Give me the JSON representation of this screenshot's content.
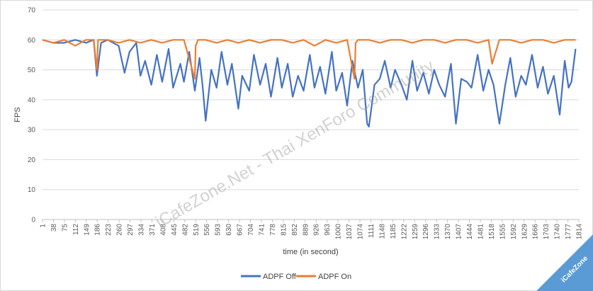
{
  "chart_data": {
    "type": "line",
    "xlabel": "time (in second)",
    "ylabel": "FPS",
    "ylim": [
      0,
      70
    ],
    "yticks": [
      0,
      10,
      20,
      30,
      40,
      50,
      60,
      70
    ],
    "xlim": [
      1,
      1825
    ],
    "xtick_labels": [
      "1",
      "38",
      "75",
      "112",
      "149",
      "186",
      "223",
      "260",
      "297",
      "334",
      "371",
      "408",
      "445",
      "482",
      "519",
      "556",
      "593",
      "630",
      "667",
      "704",
      "741",
      "778",
      "815",
      "852",
      "889",
      "926",
      "963",
      "1000",
      "1037",
      "1074",
      "1111",
      "1148",
      "1185",
      "1222",
      "1259",
      "1296",
      "1333",
      "1370",
      "1407",
      "1444",
      "1481",
      "1518",
      "1555",
      "1592",
      "1629",
      "1666",
      "1703",
      "1740",
      "1777",
      "1814"
    ],
    "grid": "horizontal",
    "legend_position": "bottom",
    "series": [
      {
        "name": "ADPF Off",
        "color": "#4472c4",
        "x": [
          1,
          38,
          75,
          112,
          149,
          175,
          186,
          200,
          223,
          260,
          280,
          297,
          320,
          334,
          350,
          371,
          390,
          408,
          430,
          445,
          470,
          482,
          500,
          519,
          535,
          545,
          556,
          575,
          593,
          610,
          630,
          645,
          667,
          680,
          704,
          720,
          741,
          760,
          778,
          800,
          815,
          835,
          852,
          870,
          889,
          910,
          926,
          945,
          963,
          985,
          1000,
          1020,
          1037,
          1055,
          1074,
          1090,
          1105,
          1111,
          1130,
          1148,
          1165,
          1185,
          1200,
          1222,
          1240,
          1259,
          1275,
          1296,
          1315,
          1333,
          1350,
          1370,
          1390,
          1407,
          1425,
          1444,
          1460,
          1481,
          1500,
          1518,
          1535,
          1555,
          1575,
          1592,
          1610,
          1629,
          1645,
          1666,
          1685,
          1703,
          1720,
          1740,
          1760,
          1777,
          1790,
          1800,
          1814
        ],
        "y": [
          60,
          59,
          59,
          60,
          59,
          60,
          48,
          59,
          60,
          58,
          49,
          56,
          59,
          48,
          53,
          45,
          55,
          46,
          57,
          44,
          52,
          46,
          56,
          43,
          54,
          45,
          33,
          50,
          44,
          56,
          45,
          52,
          37,
          48,
          43,
          55,
          45,
          52,
          41,
          54,
          44,
          52,
          41,
          48,
          43,
          55,
          44,
          51,
          42,
          56,
          43,
          49,
          38,
          53,
          44,
          50,
          32,
          31,
          45,
          47,
          53,
          44,
          50,
          45,
          40,
          53,
          43,
          49,
          42,
          50,
          45,
          41,
          52,
          32,
          47,
          46,
          44,
          55,
          43,
          50,
          45,
          32,
          45,
          54,
          41,
          48,
          45,
          55,
          44,
          51,
          42,
          48,
          35,
          53,
          44,
          46,
          57
        ]
      },
      {
        "name": "ADPF On",
        "color": "#ed7d31",
        "x": [
          1,
          38,
          75,
          112,
          149,
          175,
          186,
          190,
          223,
          260,
          297,
          334,
          371,
          408,
          445,
          482,
          519,
          522,
          530,
          556,
          593,
          630,
          667,
          704,
          741,
          778,
          815,
          852,
          889,
          926,
          963,
          1000,
          1037,
          1062,
          1066,
          1074,
          1111,
          1148,
          1185,
          1222,
          1259,
          1296,
          1333,
          1370,
          1407,
          1444,
          1481,
          1518,
          1530,
          1555,
          1592,
          1629,
          1666,
          1703,
          1740,
          1777,
          1800,
          1814
        ],
        "y": [
          60,
          59,
          60,
          58,
          60,
          60,
          50,
          60,
          60,
          59,
          60,
          59,
          60,
          59,
          60,
          60,
          47,
          58,
          60,
          60,
          59,
          60,
          59,
          60,
          59,
          60,
          60,
          59,
          60,
          58,
          60,
          59,
          60,
          47,
          59,
          60,
          60,
          59,
          60,
          60,
          59,
          60,
          60,
          59,
          60,
          60,
          59,
          60,
          52,
          60,
          60,
          59,
          60,
          60,
          59,
          60,
          60,
          60
        ]
      }
    ]
  },
  "watermark": "iCafeZone.Net - Thai XenForo Community",
  "corner_badge": "iCafeZone"
}
